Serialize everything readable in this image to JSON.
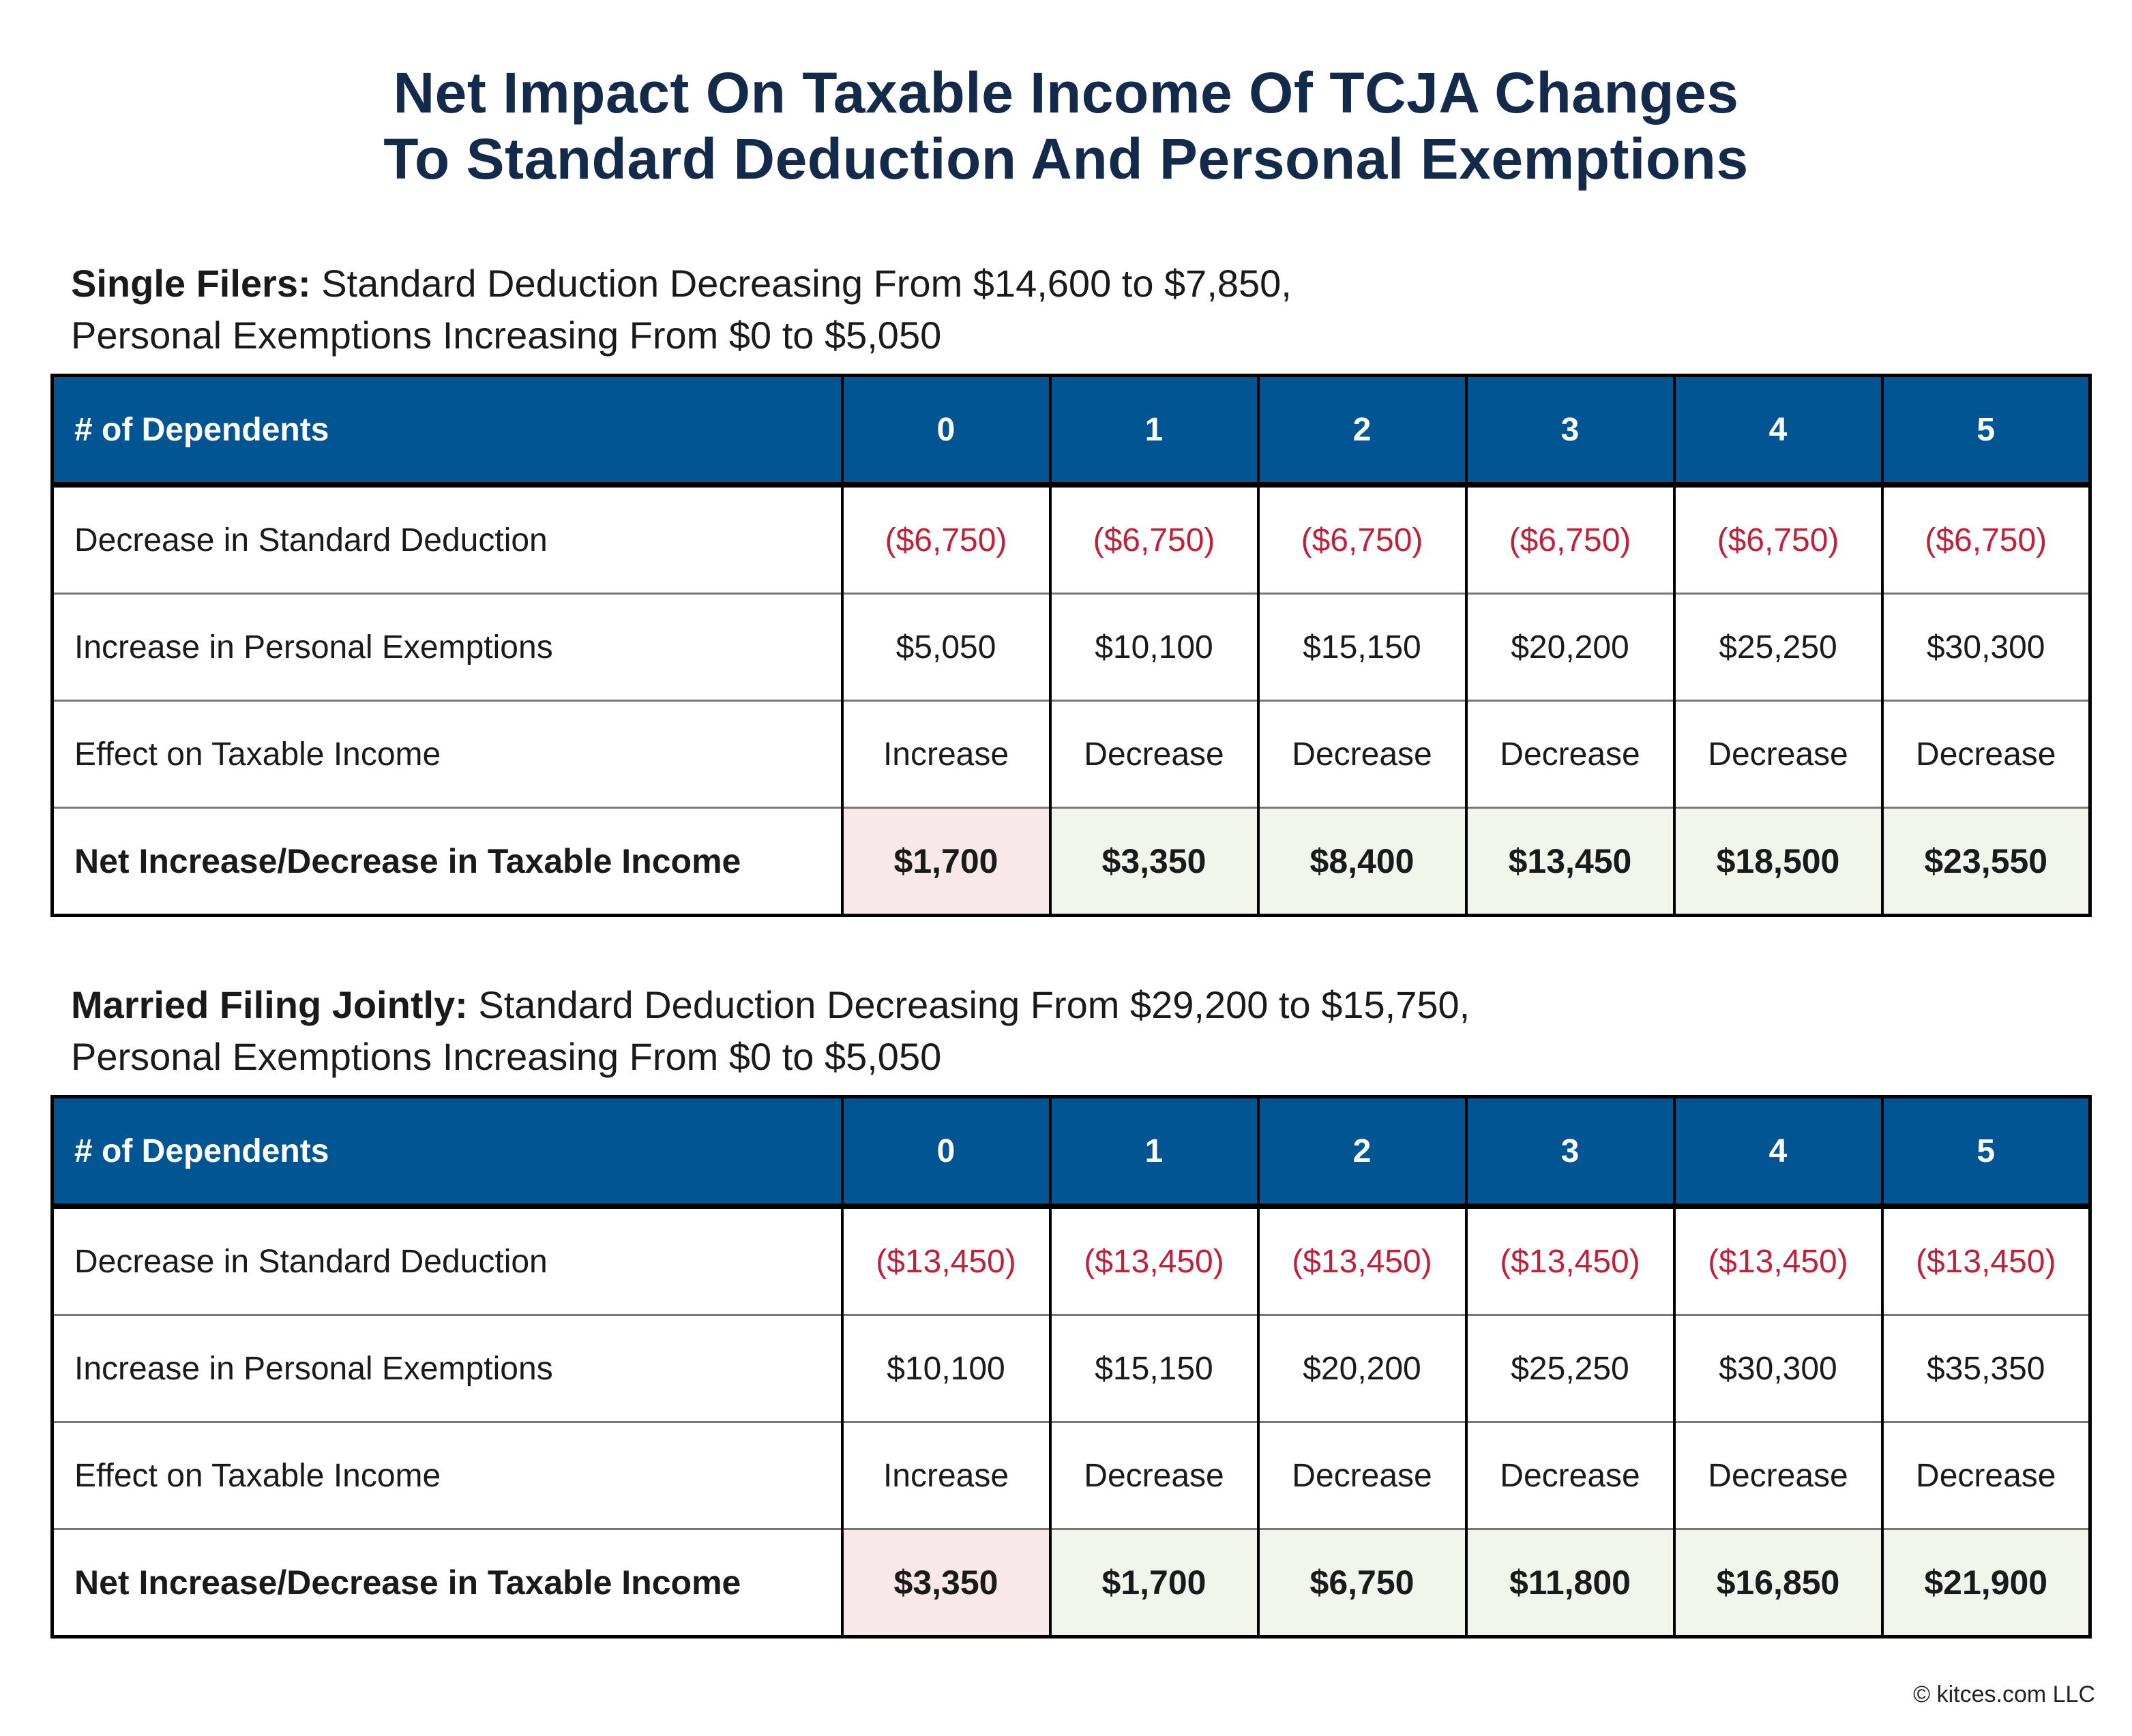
{
  "title": {
    "line1": "Net Impact On Taxable Income Of TCJA Changes",
    "line2": "To Standard Deduction And Personal Exemptions"
  },
  "colors": {
    "title": "#132a4a",
    "header_bg": "#005592",
    "negative_text": "#c0213a",
    "increase_bg": "#f8e8e9",
    "decrease_bg": "#f2f5ec"
  },
  "sections": [
    {
      "heading_bold": "Single Filers:",
      "heading_line1": " Standard Deduction Decreasing From $14,600 to $7,850,",
      "heading_line2": "Personal Exemptions Increasing From $0 to $5,050",
      "table": {
        "header_label": "# of Dependents",
        "columns": [
          "0",
          "1",
          "2",
          "3",
          "4",
          "5"
        ],
        "rows": [
          {
            "label": "Decrease in Standard Deduction",
            "values": [
              "($6,750)",
              "($6,750)",
              "($6,750)",
              "($6,750)",
              "($6,750)",
              "($6,750)"
            ]
          },
          {
            "label": "Increase in Personal Exemptions",
            "values": [
              "$5,050",
              "$10,100",
              "$15,150",
              "$20,200",
              "$25,250",
              "$30,300"
            ]
          },
          {
            "label": "Effect on Taxable Income",
            "values": [
              "Increase",
              "Decrease",
              "Decrease",
              "Decrease",
              "Decrease",
              "Decrease"
            ]
          },
          {
            "label": "Net Increase/Decrease in Taxable Income",
            "values": [
              "$1,700",
              "$3,350",
              "$8,400",
              "$13,450",
              "$18,500",
              "$23,550"
            ]
          }
        ]
      }
    },
    {
      "heading_bold": "Married Filing Jointly:",
      "heading_line1": " Standard Deduction Decreasing From $29,200 to $15,750,",
      "heading_line2": "Personal Exemptions Increasing From $0 to $5,050",
      "table": {
        "header_label": "# of Dependents",
        "columns": [
          "0",
          "1",
          "2",
          "3",
          "4",
          "5"
        ],
        "rows": [
          {
            "label": "Decrease in Standard Deduction",
            "values": [
              "($13,450)",
              "($13,450)",
              "($13,450)",
              "($13,450)",
              "($13,450)",
              "($13,450)"
            ]
          },
          {
            "label": "Increase in Personal Exemptions",
            "values": [
              "$10,100",
              "$15,150",
              "$20,200",
              "$25,250",
              "$30,300",
              "$35,350"
            ]
          },
          {
            "label": "Effect on Taxable Income",
            "values": [
              "Increase",
              "Decrease",
              "Decrease",
              "Decrease",
              "Decrease",
              "Decrease"
            ]
          },
          {
            "label": "Net Increase/Decrease in Taxable Income",
            "values": [
              "$3,350",
              "$1,700",
              "$6,750",
              "$11,800",
              "$16,850",
              "$21,900"
            ]
          }
        ]
      }
    }
  ],
  "footer": "© kitces.com LLC"
}
